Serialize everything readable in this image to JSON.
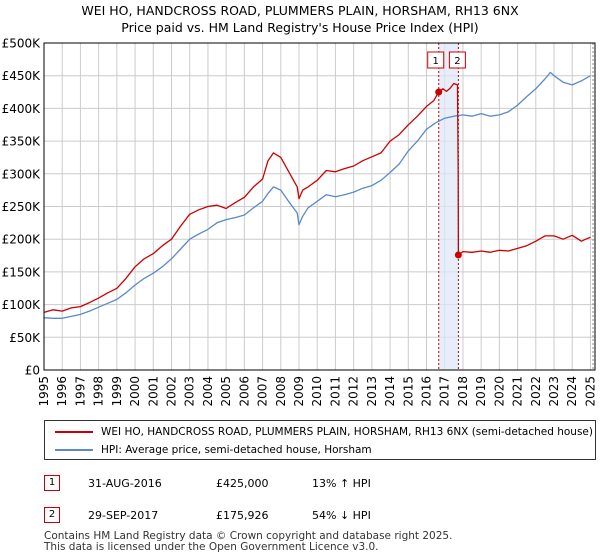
{
  "header": {
    "title_line1": "WEI HO, HANDCROSS ROAD, PLUMMERS PLAIN, HORSHAM, RH13 6NX",
    "title_line2": "Price paid vs. HM Land Registry's House Price Index (HPI)"
  },
  "colors": {
    "price_line": "#cc0000",
    "hpi_line": "#5b8ac6",
    "grid": "#cccccc",
    "shade": "#dde6f7",
    "marker_dash": "#cc0000"
  },
  "chart_data": {
    "type": "line",
    "title": "Price paid vs. HM Land Registry's House Price Index (HPI)",
    "xlabel": "",
    "ylabel": "",
    "xlim": [
      1995.0,
      2025.25
    ],
    "ylim": [
      0,
      500000
    ],
    "grid": true,
    "y_ticks": [
      {
        "value": 0,
        "label": "£0"
      },
      {
        "value": 50000,
        "label": "£50K"
      },
      {
        "value": 100000,
        "label": "£100K"
      },
      {
        "value": 150000,
        "label": "£150K"
      },
      {
        "value": 200000,
        "label": "£200K"
      },
      {
        "value": 250000,
        "label": "£250K"
      },
      {
        "value": 300000,
        "label": "£300K"
      },
      {
        "value": 350000,
        "label": "£350K"
      },
      {
        "value": 400000,
        "label": "£400K"
      },
      {
        "value": 450000,
        "label": "£450K"
      },
      {
        "value": 500000,
        "label": "£500K"
      }
    ],
    "x_ticks": [
      "1995",
      "1996",
      "1997",
      "1998",
      "1999",
      "2000",
      "2001",
      "2002",
      "2003",
      "2004",
      "2005",
      "2006",
      "2007",
      "2008",
      "2009",
      "2010",
      "2011",
      "2012",
      "2013",
      "2014",
      "2015",
      "2016",
      "2017",
      "2018",
      "2019",
      "2020",
      "2021",
      "2022",
      "2023",
      "2024",
      "2025"
    ],
    "shaded_range": [
      2016.67,
      2017.75
    ],
    "series": [
      {
        "name": "WEI HO, HANDCROSS ROAD, PLUMMERS PLAIN, HORSHAM, RH13 6NX (semi-detached house)",
        "x": [
          1995.0,
          1995.5,
          1996.0,
          1996.5,
          1997.0,
          1997.5,
          1998.0,
          1998.5,
          1999.0,
          1999.5,
          2000.0,
          2000.5,
          2001.0,
          2001.5,
          2002.0,
          2002.5,
          2003.0,
          2003.5,
          2004.0,
          2004.5,
          2005.0,
          2005.5,
          2006.0,
          2006.5,
          2007.0,
          2007.3,
          2007.6,
          2008.0,
          2008.5,
          2008.9,
          2009.0,
          2009.2,
          2009.5,
          2010.0,
          2010.5,
          2011.0,
          2011.5,
          2012.0,
          2012.5,
          2013.0,
          2013.5,
          2014.0,
          2014.5,
          2015.0,
          2015.5,
          2016.0,
          2016.4,
          2016.67,
          2016.9,
          2017.1,
          2017.3,
          2017.5,
          2017.7,
          2017.74,
          2017.75,
          2018.0,
          2018.5,
          2019.0,
          2019.5,
          2020.0,
          2020.5,
          2021.0,
          2021.5,
          2022.0,
          2022.5,
          2023.0,
          2023.5,
          2024.0,
          2024.5,
          2025.0
        ],
        "y": [
          88000,
          92000,
          90000,
          95000,
          97000,
          103000,
          110000,
          118000,
          125000,
          140000,
          158000,
          170000,
          178000,
          190000,
          200000,
          220000,
          238000,
          245000,
          250000,
          252000,
          247000,
          256000,
          264000,
          280000,
          292000,
          320000,
          332000,
          325000,
          300000,
          280000,
          262000,
          275000,
          280000,
          290000,
          305000,
          303000,
          308000,
          312000,
          320000,
          326000,
          332000,
          350000,
          360000,
          375000,
          388000,
          403000,
          412000,
          425000,
          430000,
          426000,
          431000,
          438000,
          436000,
          300000,
          175926,
          181000,
          180000,
          182000,
          180000,
          183000,
          182000,
          186000,
          190000,
          197000,
          205000,
          205000,
          200000,
          206000,
          197000,
          203000
        ]
      },
      {
        "name": "HPI: Average price, semi-detached house, Horsham",
        "x": [
          1995.0,
          1995.5,
          1996.0,
          1996.5,
          1997.0,
          1997.5,
          1998.0,
          1998.5,
          1999.0,
          1999.5,
          2000.0,
          2000.5,
          2001.0,
          2001.5,
          2002.0,
          2002.5,
          2003.0,
          2003.5,
          2004.0,
          2004.5,
          2005.0,
          2005.5,
          2006.0,
          2006.5,
          2007.0,
          2007.3,
          2007.6,
          2008.0,
          2008.5,
          2008.9,
          2009.0,
          2009.2,
          2009.5,
          2010.0,
          2010.5,
          2011.0,
          2011.5,
          2012.0,
          2012.5,
          2013.0,
          2013.5,
          2014.0,
          2014.5,
          2015.0,
          2015.5,
          2016.0,
          2016.5,
          2017.0,
          2017.5,
          2018.0,
          2018.5,
          2019.0,
          2019.5,
          2020.0,
          2020.5,
          2021.0,
          2021.5,
          2022.0,
          2022.5,
          2022.8,
          2023.0,
          2023.5,
          2024.0,
          2024.5,
          2025.0
        ],
        "y": [
          80000,
          79000,
          79000,
          82000,
          85000,
          90000,
          96000,
          102000,
          108000,
          118000,
          130000,
          140000,
          148000,
          158000,
          170000,
          185000,
          200000,
          208000,
          215000,
          225000,
          230000,
          233000,
          237000,
          248000,
          258000,
          270000,
          280000,
          275000,
          255000,
          240000,
          222000,
          235000,
          248000,
          258000,
          268000,
          265000,
          268000,
          272000,
          278000,
          282000,
          290000,
          302000,
          315000,
          335000,
          350000,
          368000,
          378000,
          385000,
          388000,
          390000,
          388000,
          392000,
          388000,
          390000,
          395000,
          405000,
          418000,
          430000,
          445000,
          455000,
          450000,
          440000,
          436000,
          442000,
          450000
        ]
      }
    ],
    "annotations": [
      {
        "label": "1",
        "x": 2016.67,
        "y": 425000
      },
      {
        "label": "2",
        "x": 2017.75,
        "y": 175926
      }
    ]
  },
  "legend": {
    "price_label": "WEI HO, HANDCROSS ROAD, PLUMMERS PLAIN, HORSHAM, RH13 6NX (semi-detached house)",
    "hpi_label": "HPI: Average price, semi-detached house, Horsham"
  },
  "sales": [
    {
      "num": "1",
      "date": "31-AUG-2016",
      "price": "£425,000",
      "hpi": "13% ↑ HPI"
    },
    {
      "num": "2",
      "date": "29-SEP-2017",
      "price": "£175,926",
      "hpi": "54% ↓ HPI"
    }
  ],
  "footer": {
    "line1": "Contains HM Land Registry data © Crown copyright and database right 2025.",
    "line2": "This data is licensed under the Open Government Licence v3.0."
  }
}
